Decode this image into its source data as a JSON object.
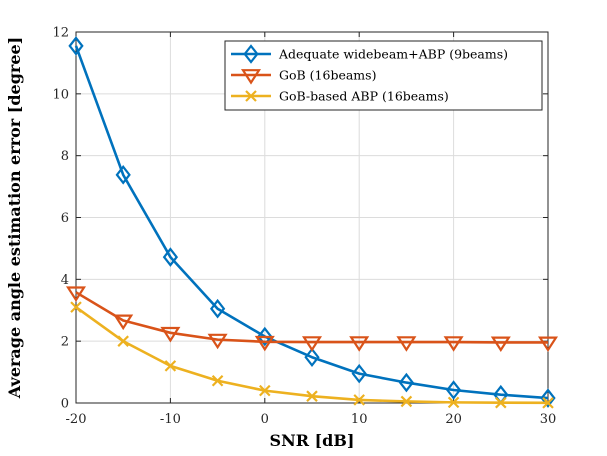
{
  "chart_data": {
    "type": "line",
    "title": "",
    "xlabel": "SNR [dB]",
    "ylabel": "Average angle estimation error [degree]",
    "x": [
      -20,
      -15,
      -10,
      -5,
      0,
      5,
      10,
      15,
      20,
      25,
      30
    ],
    "xlim": [
      -20,
      30
    ],
    "ylim": [
      0,
      12
    ],
    "xticks": [
      -20,
      -10,
      0,
      10,
      20,
      30
    ],
    "yticks": [
      0,
      2,
      4,
      6,
      8,
      10,
      12
    ],
    "grid": true,
    "legend_position": "top-right",
    "series": [
      {
        "name": "Adequate widebeam+ABP (9beams)",
        "marker": "diamond",
        "color": "#0072BD",
        "values": [
          11.55,
          7.38,
          4.72,
          3.05,
          2.15,
          1.48,
          0.95,
          0.66,
          0.42,
          0.27,
          0.16
        ]
      },
      {
        "name": "GoB (16beams)",
        "marker": "triangle-down",
        "color": "#D95319",
        "values": [
          3.58,
          2.67,
          2.27,
          2.05,
          1.98,
          1.97,
          1.97,
          1.97,
          1.97,
          1.96,
          1.96
        ]
      },
      {
        "name": "GoB-based ABP (16beams)",
        "marker": "x",
        "color": "#EDB120",
        "values": [
          3.1,
          2.0,
          1.2,
          0.72,
          0.4,
          0.22,
          0.1,
          0.05,
          0.02,
          0.01,
          0.005
        ]
      }
    ]
  }
}
